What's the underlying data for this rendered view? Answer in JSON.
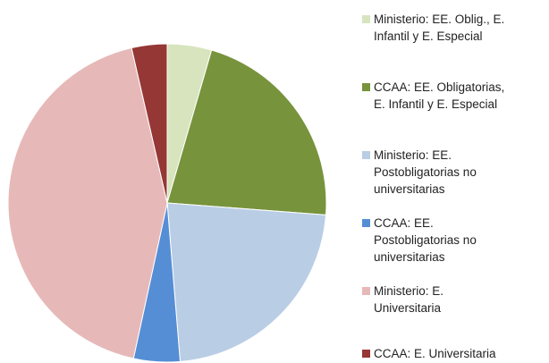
{
  "chart_data": {
    "type": "pie",
    "categories": [
      "Ministerio: EE. Oblig., E. Infantil y E. Especial",
      "CCAA: EE. Obligatorias, E. Infantil y E. Especial",
      "Ministerio: EE. Postobligatorias no universitarias",
      "CCAA: EE. Postobligatorias no universitarias",
      "Ministerio: E. Universitaria",
      "CCAA: E. Universitaria"
    ],
    "values": [
      4.5,
      21.7,
      22.5,
      4.7,
      43.0,
      3.6
    ],
    "colors": [
      "#d7e4bd",
      "#77933c",
      "#b9cde5",
      "#558ed5",
      "#e6b9b8",
      "#953735"
    ],
    "legend": "right"
  }
}
